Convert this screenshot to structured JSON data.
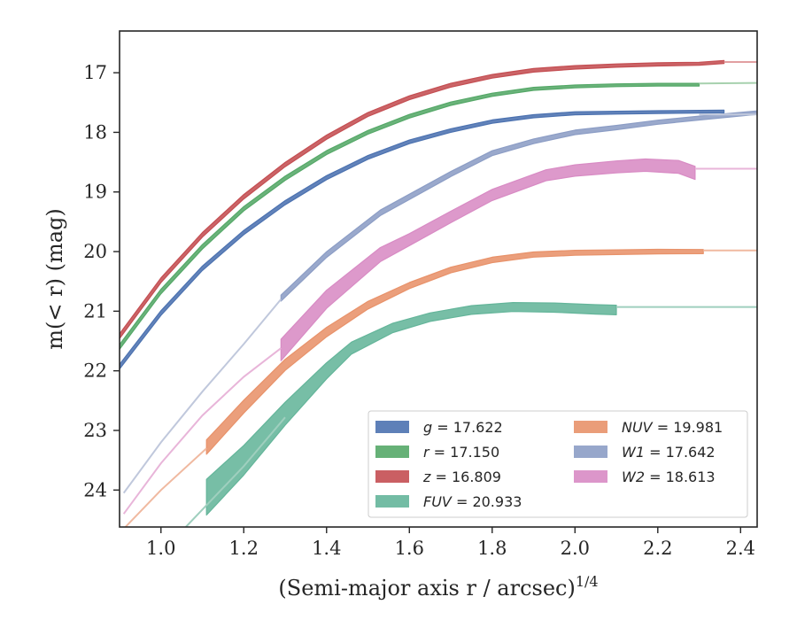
{
  "chart_data": {
    "type": "line",
    "xlabel": "(Semi-major axis r / arcsec)",
    "xlabel_exponent": "1/4",
    "ylabel": "m(< r) (mag)",
    "xlim": [
      0.9,
      2.44
    ],
    "ylim": [
      24.62,
      16.3
    ],
    "y_inverted": true,
    "xticks": [
      "1.0",
      "1.2",
      "1.4",
      "1.6",
      "1.8",
      "2.0",
      "2.2",
      "2.4"
    ],
    "yticks": [
      "17",
      "18",
      "19",
      "20",
      "21",
      "22",
      "23",
      "24"
    ],
    "grid": false,
    "legend_position": "lower-right",
    "series": [
      {
        "name": "g = 17.622",
        "label_var": "g",
        "label_value": "17.622",
        "color": "#4c72b0",
        "asymptote": 17.65,
        "profile": [
          [
            0.9,
            21.93
          ],
          [
            1.0,
            21.03
          ],
          [
            1.1,
            20.28
          ],
          [
            1.2,
            19.68
          ],
          [
            1.3,
            19.18
          ],
          [
            1.4,
            18.76
          ],
          [
            1.5,
            18.42
          ],
          [
            1.6,
            18.16
          ],
          [
            1.7,
            17.97
          ],
          [
            1.8,
            17.82
          ],
          [
            1.9,
            17.73
          ],
          [
            2.0,
            17.68
          ],
          [
            2.1,
            17.67
          ],
          [
            2.2,
            17.66
          ],
          [
            2.36,
            17.65
          ]
        ],
        "width": [
          [
            0.9,
            0.08
          ],
          [
            2.36,
            0.04
          ]
        ]
      },
      {
        "name": "r = 17.150",
        "label_var": "r",
        "label_value": "17.150",
        "color": "#55a868",
        "asymptote": 17.18,
        "profile": [
          [
            0.9,
            21.6
          ],
          [
            1.0,
            20.67
          ],
          [
            1.1,
            19.92
          ],
          [
            1.2,
            19.28
          ],
          [
            1.3,
            18.77
          ],
          [
            1.4,
            18.34
          ],
          [
            1.5,
            18.0
          ],
          [
            1.6,
            17.73
          ],
          [
            1.7,
            17.52
          ],
          [
            1.8,
            17.37
          ],
          [
            1.9,
            17.27
          ],
          [
            2.0,
            17.23
          ],
          [
            2.1,
            17.21
          ],
          [
            2.2,
            17.2
          ],
          [
            2.3,
            17.2
          ]
        ],
        "width": [
          [
            0.9,
            0.08
          ],
          [
            2.3,
            0.04
          ]
        ]
      },
      {
        "name": "z = 16.809",
        "label_var": "z",
        "label_value": "16.809",
        "color": "#c44e52",
        "asymptote": 16.82,
        "profile": [
          [
            0.9,
            21.42
          ],
          [
            1.0,
            20.48
          ],
          [
            1.1,
            19.72
          ],
          [
            1.2,
            19.08
          ],
          [
            1.3,
            18.54
          ],
          [
            1.4,
            18.08
          ],
          [
            1.5,
            17.7
          ],
          [
            1.6,
            17.42
          ],
          [
            1.7,
            17.21
          ],
          [
            1.8,
            17.06
          ],
          [
            1.9,
            16.96
          ],
          [
            2.0,
            16.91
          ],
          [
            2.1,
            16.88
          ],
          [
            2.2,
            16.86
          ],
          [
            2.3,
            16.85
          ],
          [
            2.36,
            16.82
          ]
        ],
        "width": [
          [
            0.9,
            0.08
          ],
          [
            2.36,
            0.05
          ]
        ]
      },
      {
        "name": "FUV = 20.933",
        "label_var": "FUV",
        "label_value": "20.933",
        "color": "#64b59a",
        "asymptote": 20.93,
        "profile": [
          [
            1.11,
            24.12
          ],
          [
            1.2,
            23.5
          ],
          [
            1.3,
            22.72
          ],
          [
            1.4,
            22.0
          ],
          [
            1.46,
            21.62
          ],
          [
            1.56,
            21.28
          ],
          [
            1.65,
            21.1
          ],
          [
            1.75,
            20.98
          ],
          [
            1.85,
            20.93
          ],
          [
            1.95,
            20.94
          ],
          [
            2.05,
            20.97
          ],
          [
            2.1,
            20.98
          ]
        ],
        "width": [
          [
            1.11,
            0.6
          ],
          [
            1.46,
            0.2
          ],
          [
            1.6,
            0.14
          ],
          [
            2.1,
            0.16
          ]
        ]
      },
      {
        "name": "NUV = 19.981",
        "label_var": "NUV",
        "label_value": "19.981",
        "color": "#e8926a",
        "asymptote": 19.98,
        "profile": [
          [
            1.11,
            23.28
          ],
          [
            1.2,
            22.6
          ],
          [
            1.3,
            21.9
          ],
          [
            1.4,
            21.35
          ],
          [
            1.5,
            20.9
          ],
          [
            1.6,
            20.57
          ],
          [
            1.7,
            20.31
          ],
          [
            1.8,
            20.14
          ],
          [
            1.9,
            20.05
          ],
          [
            2.0,
            20.02
          ],
          [
            2.1,
            20.01
          ],
          [
            2.2,
            20.0
          ],
          [
            2.31,
            20.0
          ]
        ],
        "width": [
          [
            1.11,
            0.24
          ],
          [
            1.6,
            0.1
          ],
          [
            2.31,
            0.07
          ]
        ]
      },
      {
        "name": "W1 = 17.642",
        "label_var": "W1",
        "label_value": "17.642",
        "color": "#8c9dc5",
        "asymptote": 17.7,
        "profile": [
          [
            1.29,
            20.78
          ],
          [
            1.4,
            20.05
          ],
          [
            1.53,
            19.35
          ],
          [
            1.7,
            18.7
          ],
          [
            1.8,
            18.35
          ],
          [
            1.9,
            18.15
          ],
          [
            2.0,
            18.0
          ],
          [
            2.1,
            17.92
          ],
          [
            2.2,
            17.83
          ],
          [
            2.3,
            17.76
          ],
          [
            2.44,
            17.67
          ]
        ],
        "width": [
          [
            1.29,
            0.1
          ],
          [
            2.44,
            0.06
          ]
        ]
      },
      {
        "name": "W2 = 18.613",
        "label_var": "W2",
        "label_value": "18.613",
        "color": "#d88bc4",
        "asymptote": 18.61,
        "profile": [
          [
            1.29,
            21.65
          ],
          [
            1.4,
            20.8
          ],
          [
            1.53,
            20.05
          ],
          [
            1.6,
            19.8
          ],
          [
            1.7,
            19.42
          ],
          [
            1.8,
            19.05
          ],
          [
            1.93,
            18.72
          ],
          [
            2.0,
            18.64
          ],
          [
            2.1,
            18.58
          ],
          [
            2.17,
            18.55
          ],
          [
            2.25,
            18.58
          ],
          [
            2.29,
            18.68
          ]
        ],
        "width": [
          [
            1.29,
            0.36
          ],
          [
            1.6,
            0.2
          ],
          [
            1.9,
            0.18
          ],
          [
            2.29,
            0.22
          ]
        ]
      }
    ],
    "extrapolation_color": "#9fcfbe",
    "extrapolations": [
      {
        "series": "FUV",
        "color": "#9fcfbe",
        "points": [
          [
            1.06,
            24.62
          ],
          [
            1.2,
            23.6
          ],
          [
            1.3,
            22.78
          ]
        ]
      },
      {
        "series": "FUV",
        "color": "#9fcfbe",
        "points": [
          [
            2.1,
            20.93
          ],
          [
            2.44,
            20.93
          ]
        ]
      },
      {
        "series": "NUV",
        "color": "#f0b9a0",
        "points": [
          [
            0.91,
            24.65
          ],
          [
            1.0,
            24.0
          ],
          [
            1.11,
            23.3
          ]
        ]
      },
      {
        "series": "NUV",
        "color": "#f0b9a0",
        "points": [
          [
            2.31,
            19.98
          ],
          [
            2.44,
            19.98
          ]
        ]
      },
      {
        "series": "W2",
        "color": "#e8b5d9",
        "points": [
          [
            0.91,
            24.4
          ],
          [
            1.0,
            23.55
          ],
          [
            1.1,
            22.75
          ],
          [
            1.2,
            22.1
          ],
          [
            1.29,
            21.62
          ]
        ]
      },
      {
        "series": "W2",
        "color": "#e8b5d9",
        "points": [
          [
            2.29,
            18.61
          ],
          [
            2.44,
            18.61
          ]
        ]
      },
      {
        "series": "W1",
        "color": "#c0c8dc",
        "points": [
          [
            0.91,
            24.05
          ],
          [
            1.0,
            23.2
          ],
          [
            1.1,
            22.35
          ],
          [
            1.2,
            21.55
          ],
          [
            1.29,
            20.8
          ]
        ]
      },
      {
        "series": "W1",
        "color": "#c0c8dc",
        "points": [
          [
            2.3,
            17.7
          ],
          [
            2.44,
            17.7
          ]
        ]
      },
      {
        "series": "r",
        "color": "#a7d1ae",
        "points": [
          [
            2.3,
            17.18
          ],
          [
            2.44,
            17.17
          ]
        ]
      },
      {
        "series": "z",
        "color": "#e19fa1",
        "points": [
          [
            2.36,
            16.82
          ],
          [
            2.44,
            16.82
          ]
        ]
      }
    ]
  }
}
